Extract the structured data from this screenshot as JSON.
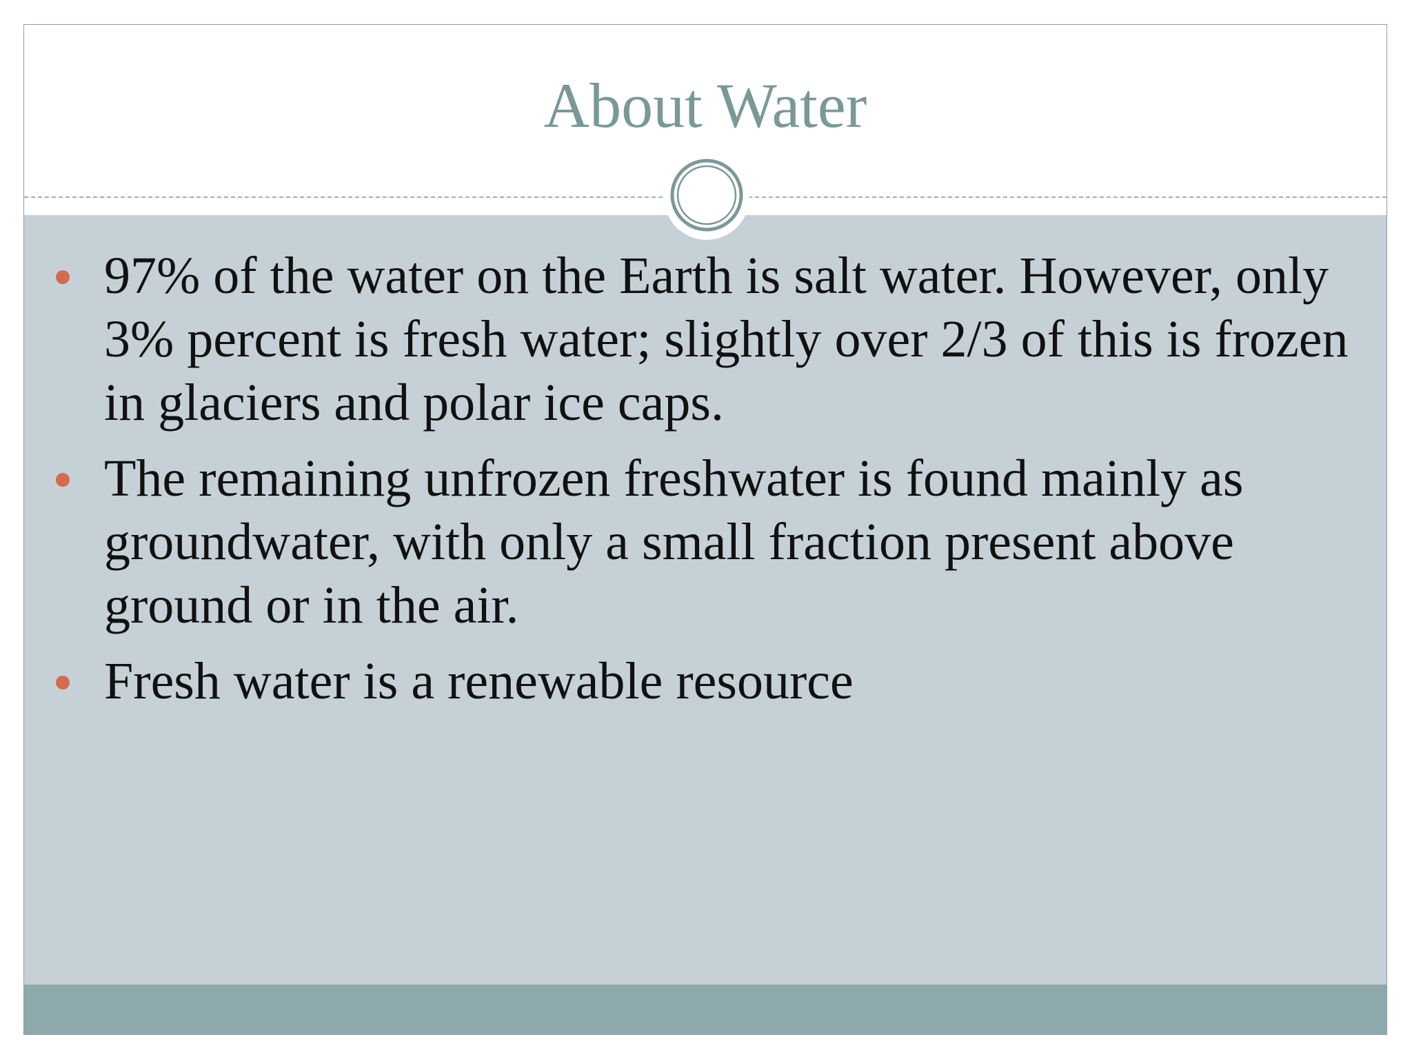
{
  "title": "About Water",
  "bullets": [
    "97% of the water on the Earth is salt water. However, only 3% percent is fresh water; slightly over 2/3  of this is frozen in glaciers and polar ice caps.",
    "The remaining unfrozen freshwater is found mainly as groundwater, with only a small fraction present above ground or in the air.",
    "Fresh water is a renewable resource"
  ]
}
